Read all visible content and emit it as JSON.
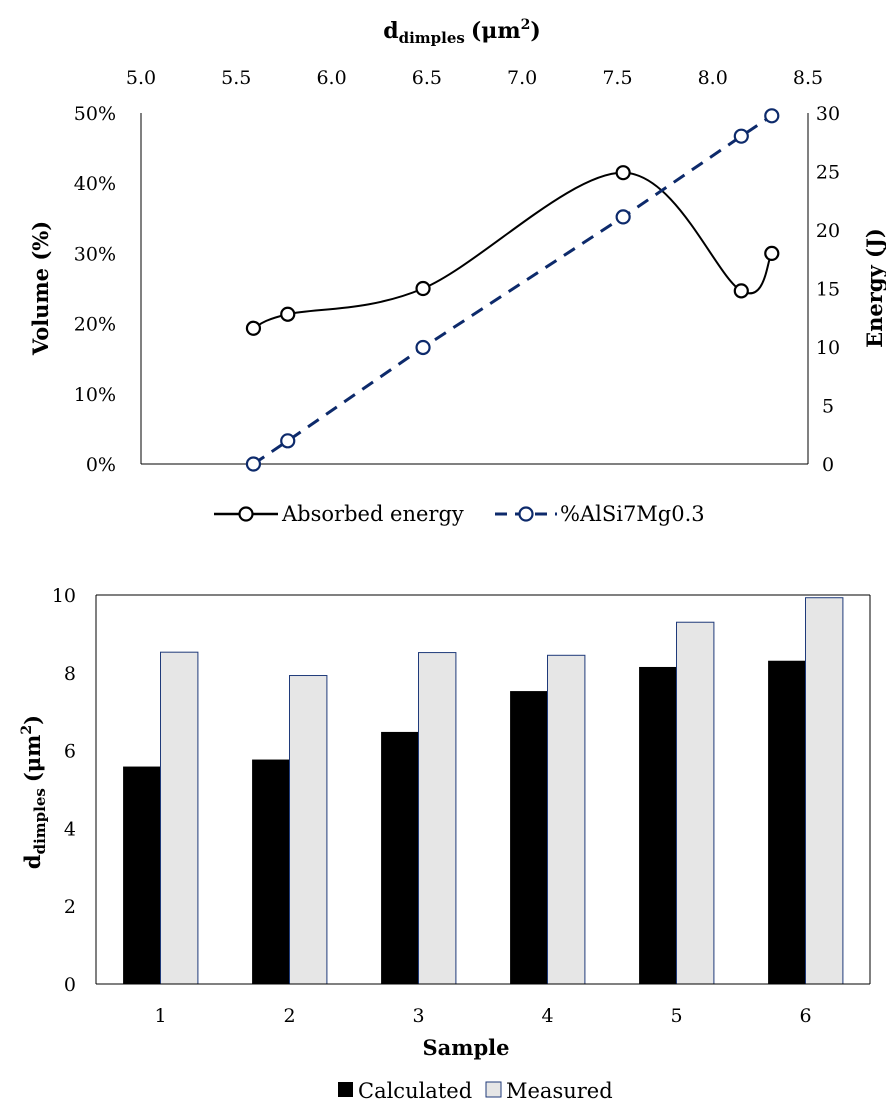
{
  "chart_data": [
    {
      "type": "line",
      "top_axis_label": {
        "main": "d",
        "sub": "dimples",
        "unit": "(μm",
        "sup": "2",
        "close": ")"
      },
      "ylabel_left": "Volume (%)",
      "ylabel_right": "Energy (J)",
      "x_ticks": [
        "5.0",
        "5.5",
        "6.0",
        "6.5",
        "7.0",
        "7.5",
        "8.0",
        "8.5"
      ],
      "xlim": [
        5.0,
        8.5
      ],
      "y_left_ticks": [
        "0%",
        "10%",
        "20%",
        "30%",
        "40%",
        "50%"
      ],
      "ylim_left": [
        0,
        50
      ],
      "y_right_ticks": [
        "0",
        "5",
        "10",
        "15",
        "20",
        "25",
        "30"
      ],
      "ylim_right": [
        0,
        30
      ],
      "legend_position": "bottom",
      "series": [
        {
          "name": "Absorbed energy",
          "axis": "right",
          "style": "solid-smooth",
          "color": "#000000",
          "x": [
            5.59,
            5.77,
            6.48,
            7.53,
            8.15,
            8.31
          ],
          "y": [
            11.6,
            12.8,
            15.0,
            24.9,
            14.8,
            18.0
          ]
        },
        {
          "name": "%AlSi7Mg0.3",
          "axis": "left",
          "style": "dashed",
          "color": "#0d2a6b",
          "x": [
            5.59,
            5.77,
            6.48,
            7.53,
            8.15,
            8.31
          ],
          "y": [
            0,
            3.3,
            16.6,
            35.2,
            46.7,
            49.6
          ]
        }
      ]
    },
    {
      "type": "bar",
      "xlabel": "Sample",
      "ylabel": {
        "main": "d",
        "sub": "dimples",
        "unit": "(μm",
        "sup": "2",
        "close": ")"
      },
      "categories": [
        "1",
        "2",
        "3",
        "4",
        "5",
        "6"
      ],
      "y_ticks": [
        "0",
        "2",
        "4",
        "6",
        "8",
        "10"
      ],
      "ylim": [
        0,
        10
      ],
      "legend_position": "bottom",
      "series": [
        {
          "name": "Calculated",
          "color": "#000000",
          "values": [
            5.59,
            5.77,
            6.48,
            7.53,
            8.15,
            8.31
          ]
        },
        {
          "name": "Measured",
          "color": "#e6e6e6",
          "border": "#1f3a7a",
          "values": [
            8.53,
            7.93,
            8.52,
            8.45,
            9.3,
            9.93
          ]
        }
      ]
    }
  ]
}
